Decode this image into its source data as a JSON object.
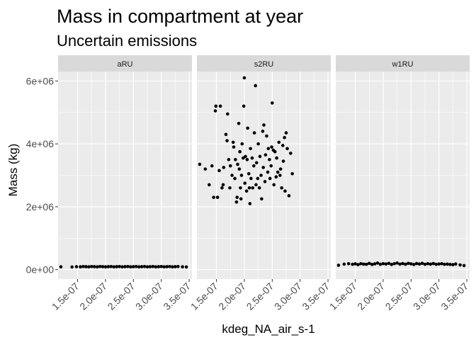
{
  "chart_data": {
    "type": "scatter",
    "title": "Mass in compartment at year",
    "subtitle": "Uncertain emissions",
    "xlabel": "kdeg_NA_air_s-1",
    "ylabel": "Mass (kg)",
    "xlim": [
      1.15e-07,
      3.55e-07
    ],
    "ylim": [
      -300000,
      6300000
    ],
    "x_ticks": [
      "1.5e-07",
      "2.0e-07",
      "2.5e-07",
      "3.0e-07",
      "3.5e-07"
    ],
    "x_tick_values": [
      1.5e-07,
      2e-07,
      2.5e-07,
      3e-07,
      3.5e-07
    ],
    "y_ticks": [
      "0e+00",
      "2e+06",
      "4e+06",
      "6e+06"
    ],
    "y_tick_values": [
      0,
      2000000,
      4000000,
      6000000
    ],
    "grid": true,
    "colors": {
      "panel_bg": "#ebebeb",
      "strip_bg": "#d9d9d9",
      "grid": "#ffffff",
      "point": "#000000"
    },
    "facets": [
      {
        "name": "aRU",
        "points": [
          [
            1.2e-07,
            90000
          ],
          [
            1.4e-07,
            85000
          ],
          [
            1.48e-07,
            95000
          ],
          [
            1.55e-07,
            90000
          ],
          [
            1.6e-07,
            100000
          ],
          [
            1.65e-07,
            95000
          ],
          [
            1.7e-07,
            90000
          ],
          [
            1.75e-07,
            100000
          ],
          [
            1.8e-07,
            95000
          ],
          [
            1.85e-07,
            90000
          ],
          [
            1.9e-07,
            100000
          ],
          [
            1.95e-07,
            95000
          ],
          [
            2e-07,
            90000
          ],
          [
            2.05e-07,
            95000
          ],
          [
            2.1e-07,
            100000
          ],
          [
            2.15e-07,
            90000
          ],
          [
            2.2e-07,
            95000
          ],
          [
            2.25e-07,
            100000
          ],
          [
            2.3e-07,
            90000
          ],
          [
            2.35e-07,
            95000
          ],
          [
            2.4e-07,
            100000
          ],
          [
            2.45e-07,
            90000
          ],
          [
            2.5e-07,
            95000
          ],
          [
            2.55e-07,
            100000
          ],
          [
            2.6e-07,
            90000
          ],
          [
            2.65e-07,
            95000
          ],
          [
            2.7e-07,
            100000
          ],
          [
            2.75e-07,
            90000
          ],
          [
            2.8e-07,
            95000
          ],
          [
            2.85e-07,
            100000
          ],
          [
            2.9e-07,
            90000
          ],
          [
            2.95e-07,
            95000
          ],
          [
            3e-07,
            100000
          ],
          [
            3.05e-07,
            90000
          ],
          [
            3.1e-07,
            95000
          ],
          [
            3.15e-07,
            100000
          ],
          [
            3.2e-07,
            90000
          ],
          [
            3.25e-07,
            95000
          ],
          [
            3.3e-07,
            100000
          ],
          [
            3.38e-07,
            90000
          ],
          [
            3.45e-07,
            85000
          ]
        ]
      },
      {
        "name": "s2RU",
        "points": [
          [
            1.2e-07,
            3350000
          ],
          [
            1.3e-07,
            3200000
          ],
          [
            1.37e-07,
            2700000
          ],
          [
            1.42e-07,
            3300000
          ],
          [
            1.45e-07,
            2300000
          ],
          [
            1.48e-07,
            5050000
          ],
          [
            1.49e-07,
            5200000
          ],
          [
            1.52e-07,
            2300000
          ],
          [
            1.55e-07,
            3150000
          ],
          [
            1.57e-07,
            5200000
          ],
          [
            1.6e-07,
            2600000
          ],
          [
            1.62e-07,
            2700000
          ],
          [
            1.63e-07,
            3250000
          ],
          [
            1.67e-07,
            4300000
          ],
          [
            1.69e-07,
            4100000
          ],
          [
            1.7e-07,
            4950000
          ],
          [
            1.72e-07,
            3500000
          ],
          [
            1.74e-07,
            2600000
          ],
          [
            1.75e-07,
            3300000
          ],
          [
            1.78e-07,
            3000000
          ],
          [
            1.8e-07,
            4050000
          ],
          [
            1.81e-07,
            3900000
          ],
          [
            1.83e-07,
            2900000
          ],
          [
            1.84e-07,
            3500000
          ],
          [
            1.86e-07,
            2150000
          ],
          [
            1.87e-07,
            2300000
          ],
          [
            1.88e-07,
            3350000
          ],
          [
            1.9e-07,
            4650000
          ],
          [
            1.91e-07,
            3200000
          ],
          [
            1.92e-07,
            3750000
          ],
          [
            1.93e-07,
            2600000
          ],
          [
            1.94e-07,
            2250000
          ],
          [
            1.95e-07,
            3000000
          ],
          [
            1.96e-07,
            4000000
          ],
          [
            1.98e-07,
            3550000
          ],
          [
            1.99e-07,
            5200000
          ],
          [
            2e-07,
            6100000
          ],
          [
            2.01e-07,
            2750000
          ],
          [
            2.02e-07,
            3600000
          ],
          [
            2.04e-07,
            2500000
          ],
          [
            2.05e-07,
            3500000
          ],
          [
            2.06e-07,
            4500000
          ],
          [
            2.08e-07,
            3050000
          ],
          [
            2.09e-07,
            2600000
          ],
          [
            2.1e-07,
            2100000
          ],
          [
            2.11e-07,
            3850000
          ],
          [
            2.12e-07,
            2900000
          ],
          [
            2.14e-07,
            3550000
          ],
          [
            2.15e-07,
            2600000
          ],
          [
            2.17e-07,
            3300000
          ],
          [
            2.18e-07,
            4350000
          ],
          [
            2.2e-07,
            5850000
          ],
          [
            2.21e-07,
            2700000
          ],
          [
            2.22e-07,
            3400000
          ],
          [
            2.24e-07,
            2900000
          ],
          [
            2.25e-07,
            4000000
          ],
          [
            2.27e-07,
            2600000
          ],
          [
            2.28e-07,
            3600000
          ],
          [
            2.3e-07,
            3000000
          ],
          [
            2.31e-07,
            2250000
          ],
          [
            2.33e-07,
            4400000
          ],
          [
            2.34e-07,
            3250000
          ],
          [
            2.35e-07,
            4600000
          ],
          [
            2.37e-07,
            2800000
          ],
          [
            2.38e-07,
            3650000
          ],
          [
            2.4e-07,
            4250000
          ],
          [
            2.42e-07,
            3100000
          ],
          [
            2.43e-07,
            3850000
          ],
          [
            2.45e-07,
            3500000
          ],
          [
            2.46e-07,
            2900000
          ],
          [
            2.48e-07,
            3300000
          ],
          [
            2.49e-07,
            3900000
          ],
          [
            2.5e-07,
            5300000
          ],
          [
            2.52e-07,
            3800000
          ],
          [
            2.53e-07,
            2700000
          ],
          [
            2.55e-07,
            3750000
          ],
          [
            2.57e-07,
            2950000
          ],
          [
            2.58e-07,
            3550000
          ],
          [
            2.6e-07,
            3100000
          ],
          [
            2.62e-07,
            4050000
          ],
          [
            2.64e-07,
            3000000
          ],
          [
            2.65e-07,
            3200000
          ],
          [
            2.67e-07,
            2600000
          ],
          [
            2.69e-07,
            3950000
          ],
          [
            2.7e-07,
            3450000
          ],
          [
            2.72e-07,
            4200000
          ],
          [
            2.73e-07,
            2500000
          ],
          [
            2.75e-07,
            4350000
          ],
          [
            2.77e-07,
            3850000
          ],
          [
            2.8e-07,
            2350000
          ],
          [
            2.83e-07,
            3700000
          ],
          [
            2.86e-07,
            3050000
          ]
        ]
      },
      {
        "name": "w1RU",
        "points": [
          [
            1.2e-07,
            140000
          ],
          [
            1.3e-07,
            175000
          ],
          [
            1.38e-07,
            190000
          ],
          [
            1.45e-07,
            170000
          ],
          [
            1.5e-07,
            185000
          ],
          [
            1.55e-07,
            160000
          ],
          [
            1.6e-07,
            190000
          ],
          [
            1.65e-07,
            175000
          ],
          [
            1.7e-07,
            170000
          ],
          [
            1.75e-07,
            200000
          ],
          [
            1.8e-07,
            165000
          ],
          [
            1.85e-07,
            185000
          ],
          [
            1.9e-07,
            210000
          ],
          [
            1.95e-07,
            170000
          ],
          [
            2e-07,
            190000
          ],
          [
            2.05e-07,
            180000
          ],
          [
            2.1e-07,
            200000
          ],
          [
            2.15e-07,
            165000
          ],
          [
            2.2e-07,
            190000
          ],
          [
            2.25e-07,
            210000
          ],
          [
            2.3e-07,
            175000
          ],
          [
            2.35e-07,
            195000
          ],
          [
            2.4e-07,
            170000
          ],
          [
            2.45e-07,
            200000
          ],
          [
            2.5e-07,
            185000
          ],
          [
            2.55e-07,
            165000
          ],
          [
            2.6e-07,
            195000
          ],
          [
            2.65e-07,
            180000
          ],
          [
            2.7e-07,
            200000
          ],
          [
            2.75e-07,
            170000
          ],
          [
            2.8e-07,
            190000
          ],
          [
            2.85e-07,
            175000
          ],
          [
            2.9e-07,
            195000
          ],
          [
            2.95e-07,
            170000
          ],
          [
            3e-07,
            180000
          ],
          [
            3.05e-07,
            190000
          ],
          [
            3.1e-07,
            170000
          ],
          [
            3.15e-07,
            175000
          ],
          [
            3.2e-07,
            165000
          ],
          [
            3.25e-07,
            160000
          ],
          [
            3.3e-07,
            180000
          ],
          [
            3.38e-07,
            150000
          ],
          [
            3.45e-07,
            130000
          ]
        ]
      }
    ]
  }
}
